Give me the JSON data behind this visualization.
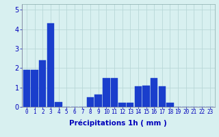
{
  "categories": [
    0,
    1,
    2,
    3,
    4,
    5,
    6,
    7,
    8,
    9,
    10,
    11,
    12,
    13,
    14,
    15,
    16,
    17,
    18,
    19,
    20,
    21,
    22,
    23
  ],
  "values": [
    1.9,
    1.9,
    2.4,
    4.3,
    0.25,
    0.0,
    0.0,
    0.0,
    0.5,
    0.65,
    1.5,
    1.5,
    0.2,
    0.2,
    1.05,
    1.1,
    1.5,
    1.05,
    0.2,
    0.0,
    0.0,
    0.0,
    0.0,
    0.0
  ],
  "bar_color": "#1a3ecc",
  "background_color": "#d8f0f0",
  "grid_color": "#b8d8d8",
  "text_color": "#0000bb",
  "xlabel": "Précipitations 1h ( mm )",
  "ylim": [
    0,
    5.3
  ],
  "yticks": [
    0,
    1,
    2,
    3,
    4,
    5
  ],
  "label_fontsize": 7.5,
  "tick_fontsize": 5.5,
  "ytick_fontsize": 7
}
